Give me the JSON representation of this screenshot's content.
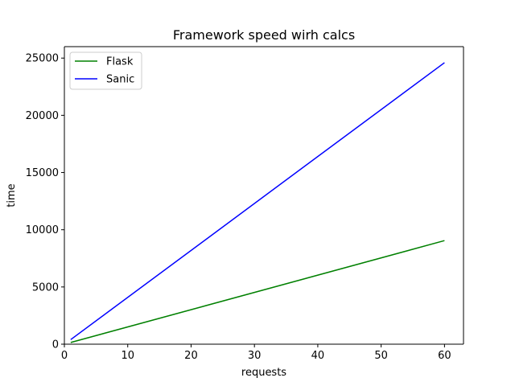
{
  "chart_data": {
    "type": "line",
    "title": "Framework speed wirh calcs",
    "xlabel": "requests",
    "ylabel": "time",
    "xlim": [
      0,
      63
    ],
    "ylim": [
      0,
      26000
    ],
    "xticks": [
      0,
      10,
      20,
      30,
      40,
      50,
      60
    ],
    "yticks": [
      0,
      5000,
      10000,
      15000,
      20000,
      25000
    ],
    "grid": false,
    "legend_position": "top-left",
    "series": [
      {
        "name": "Flask",
        "color": "#008000",
        "x": [
          1,
          60
        ],
        "y": [
          150,
          9050
        ]
      },
      {
        "name": "Sanic",
        "color": "#0000ff",
        "x": [
          1,
          60
        ],
        "y": [
          400,
          24600
        ]
      }
    ]
  }
}
